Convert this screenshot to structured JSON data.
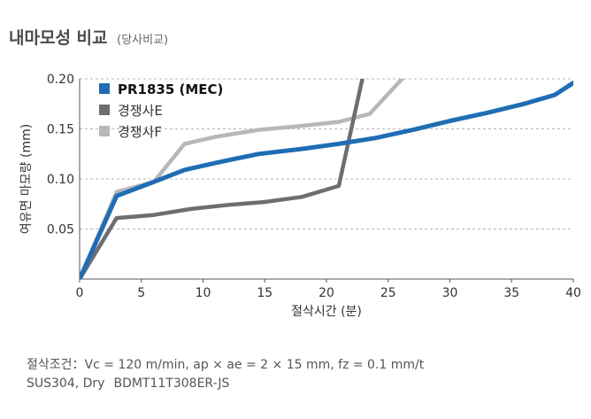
{
  "header": {
    "title": "내마모성 비교",
    "subtitle": "(당사비교)"
  },
  "conditions": {
    "line1": "절삭조건：Vc = 120 m/min, ap × ae = 2 × 15 mm, fz = 0.1 mm/t",
    "material": "SUS304, Dry",
    "tool": "BDMT11T308ER-JS"
  },
  "chart_data": {
    "type": "line",
    "title": "",
    "xlabel": "절삭시간 (분)",
    "ylabel": "여유면 마모량 (mm)",
    "xlim": [
      0,
      40
    ],
    "ylim": [
      0,
      0.2
    ],
    "xticks": [
      0,
      5,
      10,
      15,
      20,
      25,
      30,
      35,
      40
    ],
    "yticks": [
      "",
      "0.05",
      "0.10",
      "0.15",
      "0.20"
    ],
    "grid": "horizontal-dashed",
    "legend": "top-left",
    "series": [
      {
        "name": "PR1835 (MEC)",
        "color": "#1f6db4",
        "bold": true,
        "points": [
          [
            0,
            0.0
          ],
          [
            3,
            0.083
          ],
          [
            6,
            0.097
          ],
          [
            8.5,
            0.109
          ],
          [
            11,
            0.116
          ],
          [
            14.5,
            0.125
          ],
          [
            18,
            0.13
          ],
          [
            21,
            0.135
          ],
          [
            24,
            0.141
          ],
          [
            27,
            0.149
          ],
          [
            30,
            0.158
          ],
          [
            33,
            0.166
          ],
          [
            36,
            0.175
          ],
          [
            38.5,
            0.184
          ],
          [
            40,
            0.196
          ]
        ]
      },
      {
        "name": "경쟁사E",
        "color": "#6d6e71",
        "bold": false,
        "points": [
          [
            0,
            0.0
          ],
          [
            3,
            0.061
          ],
          [
            6,
            0.064
          ],
          [
            9,
            0.07
          ],
          [
            12,
            0.074
          ],
          [
            15,
            0.077
          ],
          [
            18,
            0.082
          ],
          [
            21,
            0.093
          ],
          [
            23,
            0.205
          ]
        ]
      },
      {
        "name": "경쟁사F",
        "color": "#b7b8ba",
        "bold": false,
        "points": [
          [
            0,
            0.0
          ],
          [
            3,
            0.087
          ],
          [
            6,
            0.097
          ],
          [
            8.5,
            0.135
          ],
          [
            11,
            0.142
          ],
          [
            14.5,
            0.149
          ],
          [
            18,
            0.153
          ],
          [
            21,
            0.157
          ],
          [
            23.5,
            0.165
          ],
          [
            26.5,
            0.205
          ]
        ]
      }
    ]
  }
}
